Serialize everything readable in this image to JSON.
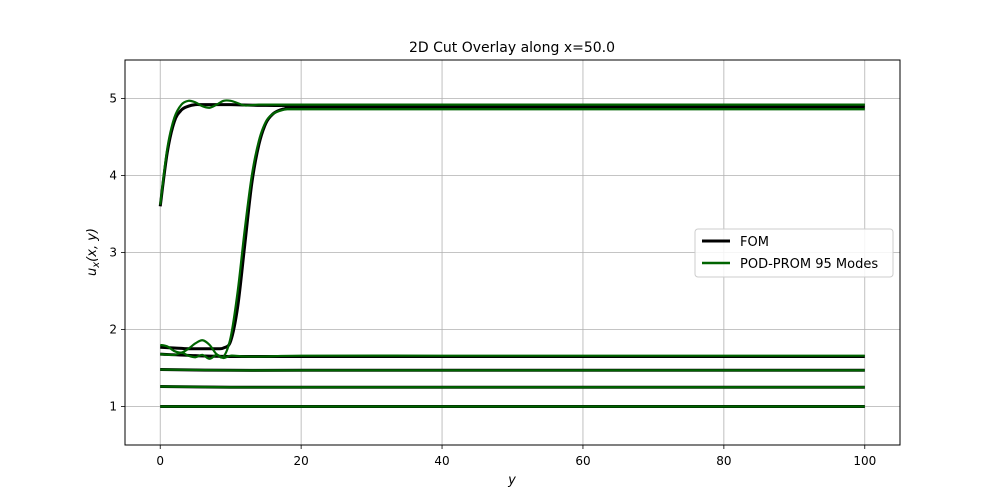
{
  "chart_data": {
    "type": "line",
    "title": "2D Cut Overlay along x=50.0",
    "xlabel": "y",
    "ylabel": "u_x(x, y)",
    "ylabel_main": "u",
    "ylabel_sub": "x",
    "ylabel_rest": "(x, y)",
    "xlim": [
      -5,
      105
    ],
    "ylim": [
      0.5,
      5.5
    ],
    "xticks": [
      0,
      20,
      40,
      60,
      80,
      100
    ],
    "yticks": [
      1,
      2,
      3,
      4,
      5
    ],
    "grid": true,
    "legend_position": "center-right",
    "legend": [
      {
        "label": "FOM",
        "color": "#000000"
      },
      {
        "label": "POD-PROM 95 Modes",
        "color": "#006400"
      }
    ],
    "series": [
      {
        "name": "FOM",
        "color": "#000000",
        "x": [
          0,
          1,
          2,
          3,
          4,
          5,
          6,
          8,
          10,
          15,
          20,
          40,
          60,
          80,
          100
        ],
        "y": [
          3.6,
          4.3,
          4.7,
          4.85,
          4.9,
          4.92,
          4.92,
          4.92,
          4.92,
          4.91,
          4.91,
          4.91,
          4.91,
          4.91,
          4.91
        ]
      },
      {
        "name": "FOM",
        "color": "#000000",
        "x": [
          0,
          2,
          4,
          6,
          8,
          9,
          10,
          11,
          12,
          13,
          14,
          15,
          16,
          17,
          18,
          20,
          40,
          60,
          80,
          100
        ],
        "y": [
          1.77,
          1.76,
          1.75,
          1.75,
          1.75,
          1.76,
          1.85,
          2.3,
          3.1,
          3.9,
          4.4,
          4.68,
          4.8,
          4.85,
          4.87,
          4.88,
          4.88,
          4.88,
          4.88,
          4.88
        ]
      },
      {
        "name": "FOM",
        "color": "#000000",
        "x": [
          0,
          5,
          10,
          20,
          40,
          60,
          80,
          100
        ],
        "y": [
          1.68,
          1.66,
          1.65,
          1.65,
          1.65,
          1.65,
          1.65,
          1.65
        ]
      },
      {
        "name": "FOM",
        "color": "#000000",
        "x": [
          0,
          10,
          20,
          40,
          60,
          80,
          100
        ],
        "y": [
          1.48,
          1.47,
          1.47,
          1.47,
          1.47,
          1.47,
          1.47
        ]
      },
      {
        "name": "FOM",
        "color": "#000000",
        "x": [
          0,
          10,
          20,
          40,
          60,
          80,
          100
        ],
        "y": [
          1.26,
          1.25,
          1.25,
          1.25,
          1.25,
          1.25,
          1.25
        ]
      },
      {
        "name": "FOM",
        "color": "#000000",
        "x": [
          0,
          20,
          40,
          60,
          80,
          100
        ],
        "y": [
          1.0,
          1.0,
          1.0,
          1.0,
          1.0,
          1.0
        ]
      },
      {
        "name": "POD-PROM 95 Modes",
        "color": "#006400",
        "x": [
          0,
          1,
          2,
          3,
          4,
          5,
          6,
          7,
          8,
          9,
          10,
          11,
          12,
          14,
          16,
          20,
          40,
          60,
          80,
          100
        ],
        "y": [
          3.62,
          4.35,
          4.75,
          4.92,
          4.97,
          4.95,
          4.9,
          4.88,
          4.92,
          4.97,
          4.97,
          4.94,
          4.91,
          4.92,
          4.92,
          4.92,
          4.92,
          4.92,
          4.92,
          4.92
        ]
      },
      {
        "name": "POD-PROM 95 Modes",
        "color": "#006400",
        "x": [
          0,
          1,
          2,
          3,
          4,
          5,
          6,
          7,
          8,
          9,
          10,
          11,
          12,
          13,
          14,
          15,
          16,
          17,
          18,
          20,
          40,
          60,
          80,
          100
        ],
        "y": [
          1.8,
          1.78,
          1.72,
          1.7,
          1.75,
          1.82,
          1.86,
          1.8,
          1.68,
          1.65,
          1.9,
          2.5,
          3.3,
          4.0,
          4.45,
          4.7,
          4.8,
          4.84,
          4.86,
          4.86,
          4.86,
          4.86,
          4.86,
          4.86
        ]
      },
      {
        "name": "POD-PROM 95 Modes",
        "color": "#006400",
        "x": [
          0,
          2,
          3,
          4,
          5,
          6,
          7,
          8,
          9,
          10,
          12,
          15,
          20,
          40,
          60,
          80,
          100
        ],
        "y": [
          1.68,
          1.67,
          1.7,
          1.66,
          1.64,
          1.67,
          1.62,
          1.67,
          1.63,
          1.66,
          1.65,
          1.65,
          1.66,
          1.66,
          1.66,
          1.66,
          1.66
        ]
      },
      {
        "name": "POD-PROM 95 Modes",
        "color": "#006400",
        "x": [
          0,
          10,
          20,
          40,
          60,
          80,
          100
        ],
        "y": [
          1.48,
          1.47,
          1.47,
          1.47,
          1.47,
          1.47,
          1.47
        ]
      },
      {
        "name": "POD-PROM 95 Modes",
        "color": "#006400",
        "x": [
          0,
          10,
          20,
          40,
          60,
          80,
          100
        ],
        "y": [
          1.26,
          1.25,
          1.25,
          1.25,
          1.25,
          1.25,
          1.25
        ]
      },
      {
        "name": "POD-PROM 95 Modes",
        "color": "#006400",
        "x": [
          0,
          20,
          40,
          60,
          80,
          100
        ],
        "y": [
          1.0,
          1.0,
          1.0,
          1.0,
          1.0,
          1.0
        ]
      }
    ]
  }
}
